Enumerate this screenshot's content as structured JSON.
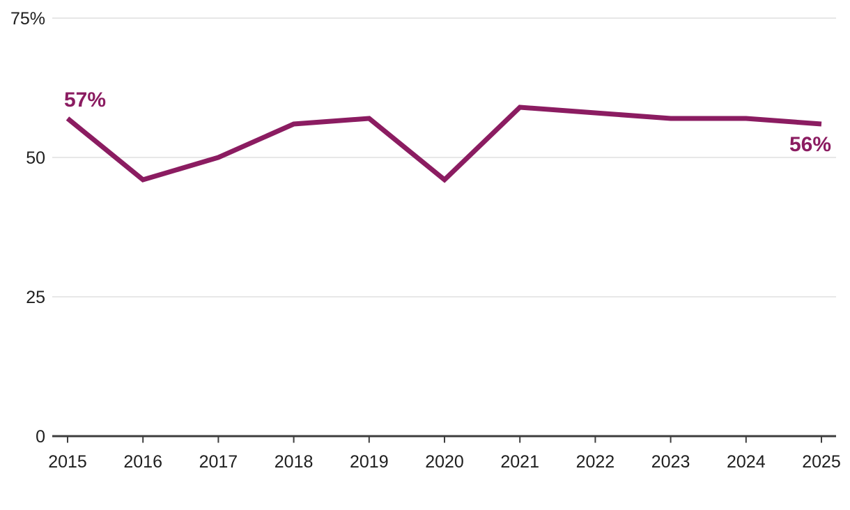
{
  "chart_data": {
    "type": "line",
    "title": "",
    "xlabel": "",
    "ylabel": "",
    "categories": [
      "2015",
      "2016",
      "2017",
      "2018",
      "2019",
      "2020",
      "2021",
      "2022",
      "2023",
      "2024",
      "2025"
    ],
    "series": [
      {
        "name": "percent",
        "values": [
          57,
          46,
          50,
          56,
          57,
          46,
          59,
          58,
          57,
          57,
          56
        ]
      }
    ],
    "ylim": [
      0,
      75
    ],
    "yticks": [
      {
        "value": 0,
        "label": "0"
      },
      {
        "value": 25,
        "label": "25"
      },
      {
        "value": 50,
        "label": "50"
      },
      {
        "value": 75,
        "label": "75%"
      }
    ],
    "grid": "horizontal-light-gray",
    "legend": "none",
    "annotations": [
      {
        "text": "57%",
        "category_index": 0,
        "position": "above-start"
      },
      {
        "text": "56%",
        "category_index": 10,
        "position": "below-end"
      }
    ],
    "colors": {
      "line": "#8b1c61",
      "data_label": "#8b1c61",
      "gridline": "#e7e7e7",
      "axis": "#3d3d3d",
      "tick_text": "#1f1f1f",
      "background": "#ffffff"
    }
  }
}
